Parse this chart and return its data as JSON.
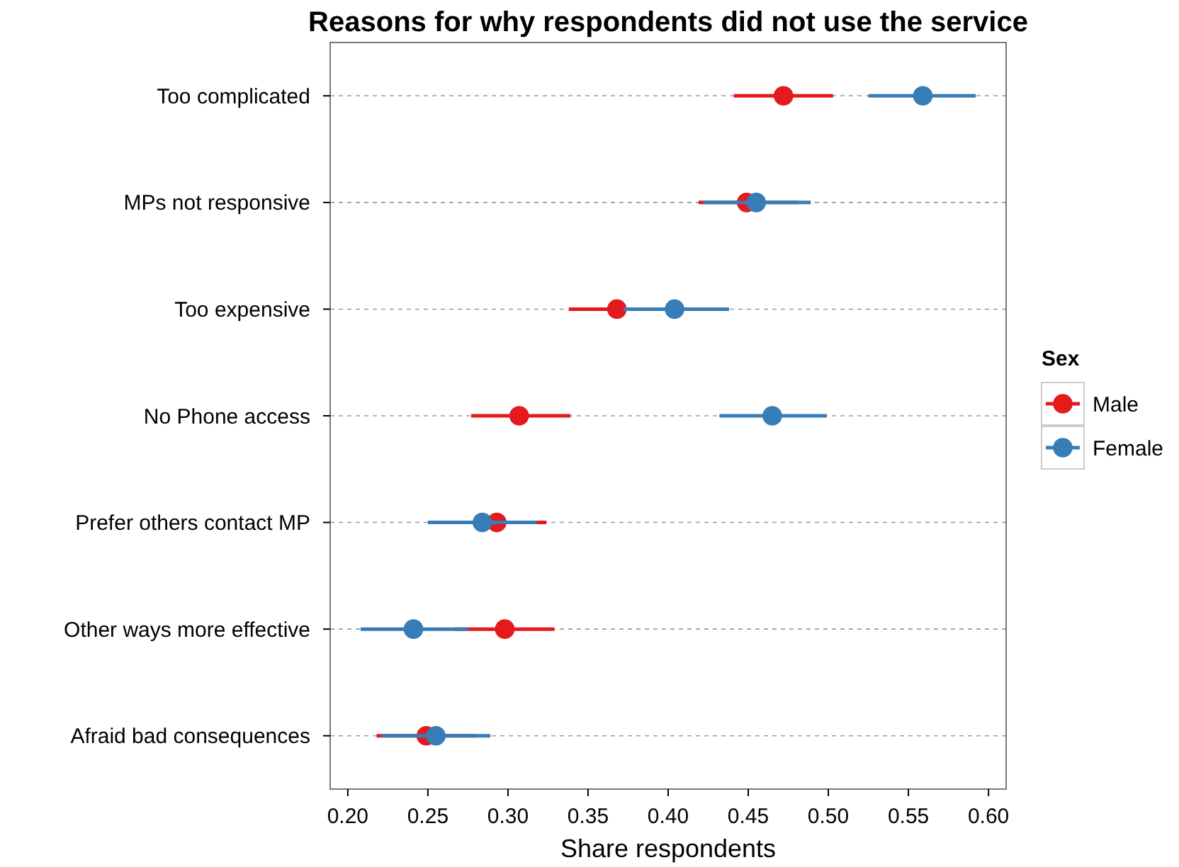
{
  "chart_data": {
    "type": "scatter",
    "orientation": "horizontal",
    "title": "Reasons for why respondents did not use the service",
    "xlabel": "Share respondents",
    "legend_title": "Sex",
    "legend": "right",
    "grid": "y",
    "marker": "circle",
    "categories": [
      "Too complicated",
      "MPs not responsive",
      "Too expensive",
      "No Phone access",
      "Prefer others contact MP",
      "Other ways more effective",
      "Afraid bad consequences"
    ],
    "xlim": [
      0.189,
      0.611
    ],
    "xticks": [
      {
        "value": 0.2,
        "label": "0.20"
      },
      {
        "value": 0.25,
        "label": "0.25"
      },
      {
        "value": 0.3,
        "label": "0.30"
      },
      {
        "value": 0.35,
        "label": "0.35"
      },
      {
        "value": 0.4,
        "label": "0.40"
      },
      {
        "value": 0.45,
        "label": "0.45"
      },
      {
        "value": 0.5,
        "label": "0.50"
      },
      {
        "value": 0.55,
        "label": "0.55"
      },
      {
        "value": 0.6,
        "label": "0.60"
      }
    ],
    "series": [
      {
        "name": "Male",
        "color": "#e41a1c",
        "values": [
          0.472,
          0.449,
          0.368,
          0.307,
          0.293,
          0.298,
          0.249
        ],
        "errors": [
          [
            0.441,
            0.503
          ],
          [
            0.419,
            0.481
          ],
          [
            0.338,
            0.398
          ],
          [
            0.277,
            0.339
          ],
          [
            0.263,
            0.324
          ],
          [
            0.267,
            0.329
          ],
          [
            0.218,
            0.28
          ]
        ]
      },
      {
        "name": "Female",
        "color": "#377eb8",
        "values": [
          0.559,
          0.455,
          0.404,
          0.465,
          0.284,
          0.241,
          0.255
        ],
        "errors": [
          [
            0.525,
            0.592
          ],
          [
            0.422,
            0.489
          ],
          [
            0.372,
            0.438
          ],
          [
            0.432,
            0.499
          ],
          [
            0.25,
            0.318
          ],
          [
            0.208,
            0.275
          ],
          [
            0.221,
            0.289
          ]
        ]
      }
    ]
  }
}
